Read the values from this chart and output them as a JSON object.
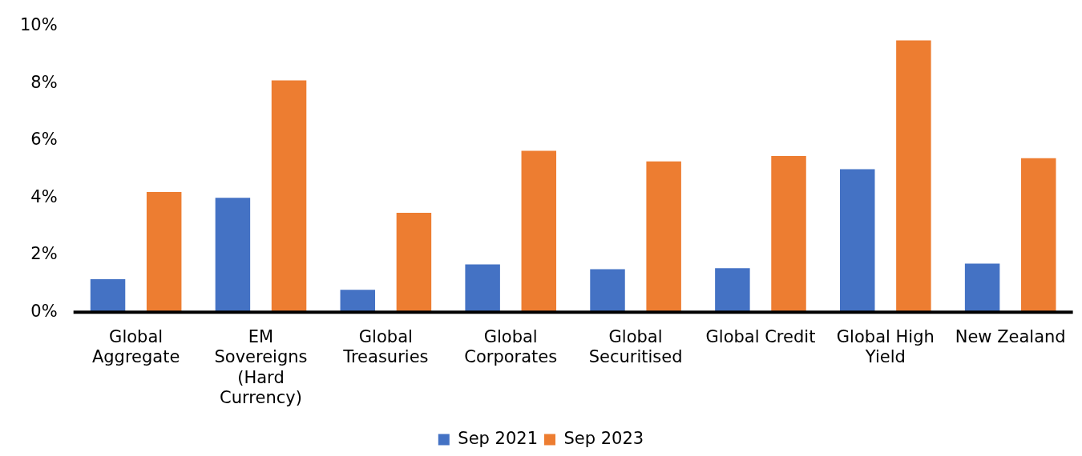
{
  "chart_data": {
    "type": "bar",
    "categories": [
      "Global Aggregate",
      "EM Sovereigns (Hard Currency)",
      "Global Treasuries",
      "Global Corporates",
      "Global Securitised",
      "Global Credit",
      "Global High Yield",
      "New Zealand"
    ],
    "series": [
      {
        "name": "Sep 2021",
        "color": "#4472c4",
        "values": [
          1.15,
          4.0,
          0.78,
          1.67,
          1.5,
          1.54,
          5.0,
          1.7
        ]
      },
      {
        "name": "Sep 2023",
        "color": "#ed7d31",
        "values": [
          4.2,
          8.1,
          3.47,
          5.64,
          5.27,
          5.46,
          9.5,
          5.38
        ]
      }
    ],
    "ylim": [
      0,
      10
    ],
    "yticks": [
      {
        "value": 0,
        "label": "0%"
      },
      {
        "value": 2,
        "label": "2%"
      },
      {
        "value": 4,
        "label": "4%"
      },
      {
        "value": 6,
        "label": "6%"
      },
      {
        "value": 8,
        "label": "8%"
      },
      {
        "value": 10,
        "label": "10%"
      }
    ],
    "grid": false,
    "legend": "bottom"
  }
}
